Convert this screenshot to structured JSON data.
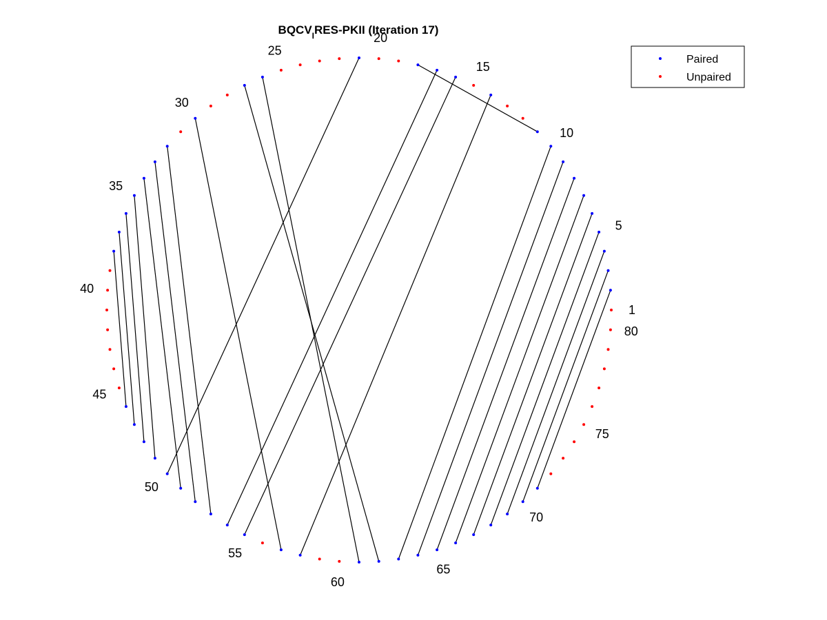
{
  "title": {
    "prefix": "BQCV",
    "subscript": "I",
    "suffix": "RES-PKII (Iteration 17)"
  },
  "legend": {
    "placement": "top-right",
    "items": [
      {
        "label": "Paired",
        "color": "#0000ff"
      },
      {
        "label": "Unpaired",
        "color": "#ff0000"
      }
    ]
  },
  "chart_data": {
    "type": "arc-diagram-circular",
    "num_positions": 80,
    "start_index": 1,
    "direction": "counterclockwise",
    "position_labels": [
      1,
      5,
      10,
      15,
      20,
      25,
      30,
      35,
      40,
      45,
      50,
      55,
      60,
      65,
      70,
      75,
      80
    ],
    "pairs": [
      [
        2,
        71
      ],
      [
        3,
        70
      ],
      [
        4,
        69
      ],
      [
        5,
        68
      ],
      [
        6,
        67
      ],
      [
        7,
        66
      ],
      [
        8,
        65
      ],
      [
        9,
        64
      ],
      [
        10,
        63
      ],
      [
        11,
        18
      ],
      [
        14,
        58
      ],
      [
        16,
        55
      ],
      [
        17,
        54
      ],
      [
        21,
        50
      ],
      [
        26,
        61
      ],
      [
        27,
        62
      ],
      [
        30,
        57
      ],
      [
        32,
        53
      ],
      [
        33,
        52
      ],
      [
        34,
        51
      ],
      [
        35,
        49
      ],
      [
        36,
        48
      ],
      [
        37,
        47
      ],
      [
        38,
        46
      ]
    ],
    "colors": {
      "paired": "#0000ff",
      "unpaired": "#ff0000",
      "line": "#000000"
    }
  }
}
